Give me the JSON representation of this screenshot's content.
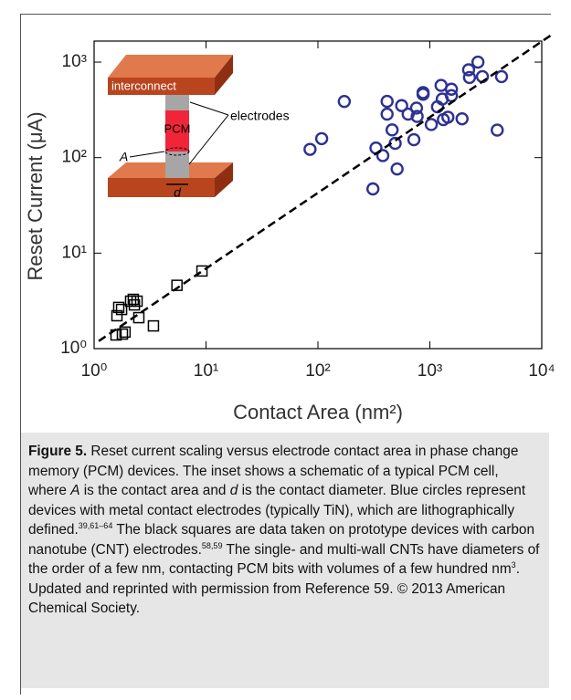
{
  "chart_data": {
    "type": "scatter",
    "xlabel": "Contact Area (nm²)",
    "ylabel": "Reset Current (μA)",
    "xscale": "log",
    "yscale": "log",
    "xlim": [
      1,
      10000
    ],
    "ylim": [
      1,
      1660
    ],
    "xticks": [
      {
        "value": 1,
        "label": "10⁰"
      },
      {
        "value": 10,
        "label": "10¹"
      },
      {
        "value": 100,
        "label": "10²"
      },
      {
        "value": 1000,
        "label": "10³"
      },
      {
        "value": 10000,
        "label": "10⁴"
      }
    ],
    "yticks": [
      {
        "value": 1,
        "label": "10⁰"
      },
      {
        "value": 10,
        "label": "10¹"
      },
      {
        "value": 100,
        "label": "10²"
      },
      {
        "value": 1000,
        "label": "10³"
      }
    ],
    "series": [
      {
        "marker": "circle",
        "color": "#2e3192",
        "x": [
          85,
          108,
          172,
          310,
          330,
          380,
          415,
          415,
          460,
          490,
          510,
          560,
          640,
          720,
          760,
          770,
          870,
          870,
          1030,
          1170,
          1260,
          1290,
          1320,
          1450,
          1560,
          1560,
          1940,
          2220,
          2260,
          2690,
          2950,
          4000,
          4370
        ],
        "values": [
          122,
          158,
          387,
          47,
          126,
          105,
          388,
          285,
          195,
          141,
          76,
          350,
          285,
          154,
          330,
          270,
          480,
          460,
          222,
          340,
          570,
          410,
          250,
          265,
          445,
          520,
          255,
          830,
          690,
          1000,
          705,
          194,
          705
        ]
      },
      {
        "marker": "square",
        "color": "#000000",
        "x": [
          1.57,
          1.79,
          1.6,
          1.66,
          1.76,
          1.89,
          2.12,
          2.24,
          2.42,
          2.51,
          2.29,
          3.39,
          5.5,
          9.2
        ],
        "values": [
          1.39,
          1.42,
          2.21,
          2.7,
          2.57,
          1.49,
          3.14,
          3.28,
          3.14,
          2.11,
          2.87,
          1.73,
          4.6,
          6.5
        ]
      },
      {
        "marker": "dashed-line",
        "color": "#000000",
        "x": [
          1.1,
          12000
        ],
        "values": [
          1.2,
          1900
        ]
      }
    ],
    "inset": {
      "interconnect": "interconnect",
      "electrodes": "electrodes",
      "pcm": "PCM",
      "area": "A",
      "diameter": "d"
    }
  },
  "caption": {
    "label": "Figure 5.",
    "t1": " Reset current scaling versus electrode contact area in phase change memory (PCM) devices. The inset shows a schematic of a typical PCM cell, where ",
    "i1": "A",
    "t2": " is the contact area and ",
    "i2": "d",
    "t3": " is the contact diameter. Blue circles represent devices with metal contact electrodes (typically TiN), which are lithographically defined.",
    "s1": "39,61–64",
    "t4": " The black squares are data taken on prototype devices with carbon nanotube (CNT) electrodes.",
    "s2": "58,59",
    "t5": " The single- and multi-wall CNTs have diameters of the order of a few nm, contacting PCM bits with volumes of a few hundred nm",
    "s3": "3",
    "t6": ". Updated and reprinted with permission from Reference 59. © 2013 American Chemical Society."
  }
}
